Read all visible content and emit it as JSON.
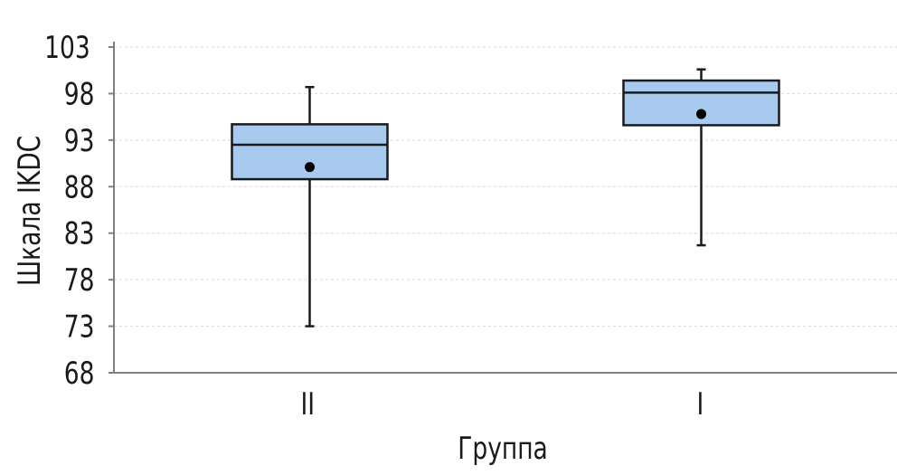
{
  "chart_data": {
    "type": "box",
    "xlabel": "Группа",
    "ylabel": "Шкала IKDC",
    "ylim": [
      68,
      103
    ],
    "yticks": [
      68,
      73,
      78,
      83,
      88,
      93,
      98,
      103
    ],
    "grid": "horizontal-dashed",
    "categories": [
      "II",
      "I"
    ],
    "boxes": [
      {
        "category": "II",
        "whisker_low": 73.0,
        "q1": 88.8,
        "median": 92.5,
        "q3": 94.7,
        "whisker_high": 98.7,
        "mean": 90.1
      },
      {
        "category": "I",
        "whisker_low": 81.7,
        "q1": 94.6,
        "median": 98.1,
        "q3": 99.4,
        "whisker_high": 100.6,
        "mean": 95.8
      }
    ],
    "colors": {
      "box_fill": "#a8caee",
      "box_stroke": "#1a1a1a",
      "axis": "#808080",
      "grid": "#d9d9d9"
    }
  }
}
